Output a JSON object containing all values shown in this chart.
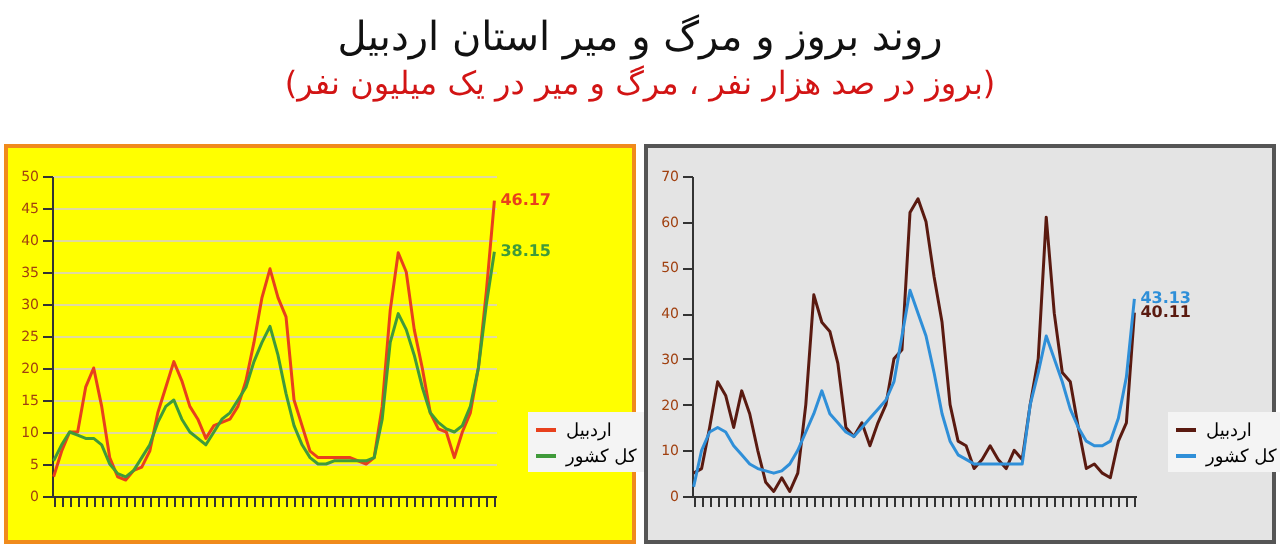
{
  "chart_data": [
    {
      "type": "line",
      "title": "روند بروز و مرگ و میر استان اردبیل",
      "subtitle": "(بروز در صد هزار نفر ، مرگ و میر در یک میلیون نفر)",
      "categories": [
        null,
        null,
        null,
        null,
        null,
        null,
        null,
        null,
        null,
        null,
        null,
        null,
        null,
        null,
        null,
        null,
        null,
        null,
        null,
        null,
        null,
        null,
        null,
        null,
        null,
        null,
        null,
        null,
        null,
        null,
        null,
        null,
        null,
        null,
        null,
        null,
        null,
        null,
        null,
        null,
        null,
        null,
        null,
        null,
        null,
        null,
        null,
        null,
        null,
        null,
        null,
        null,
        null,
        null,
        null,
        null
      ],
      "series": [
        {
          "name": "اردبیل",
          "color": "#e8401c",
          "values": [
            3,
            7,
            10,
            10,
            17,
            20,
            14,
            6,
            3,
            2.5,
            4,
            4.5,
            7,
            13,
            17,
            21,
            18,
            14,
            12,
            9,
            11,
            11.5,
            12,
            14,
            18,
            24,
            31,
            35.5,
            31,
            28,
            15,
            11,
            7,
            6,
            6,
            6,
            6,
            6,
            5.5,
            5,
            6,
            14,
            29,
            38,
            35,
            26,
            20,
            13,
            10.5,
            10,
            6,
            10,
            13,
            20,
            32,
            46.17
          ],
          "value_labels": [
            null,
            null,
            null,
            null,
            null,
            null,
            null,
            null,
            null,
            null,
            null,
            null,
            null,
            null,
            null,
            null,
            null,
            null,
            null,
            null,
            null,
            null,
            null,
            null,
            null,
            null,
            null,
            null,
            null,
            null,
            null,
            null,
            null,
            null,
            null,
            null,
            null,
            null,
            null,
            null,
            null,
            null,
            null,
            null,
            null,
            null,
            null,
            null,
            null,
            null,
            null,
            null,
            null,
            null,
            null,
            "46.17"
          ]
        },
        {
          "name": "کل کشور",
          "color": "#3f9a3a",
          "values": [
            5.5,
            8,
            10,
            9.5,
            9,
            9,
            8,
            5,
            3.5,
            3,
            4,
            6,
            8,
            11.5,
            14,
            15,
            12,
            10,
            9,
            8,
            10,
            12,
            13,
            15,
            17,
            21,
            24,
            26.5,
            22,
            16,
            11,
            8,
            6,
            5,
            5,
            5.5,
            5.5,
            5.5,
            5.5,
            5.5,
            6,
            12,
            24,
            28.5,
            26,
            22,
            17,
            13,
            11.5,
            10.5,
            10,
            11,
            14,
            20,
            30,
            38.15
          ],
          "value_labels": [
            null,
            null,
            null,
            null,
            null,
            null,
            null,
            null,
            null,
            null,
            null,
            null,
            null,
            null,
            null,
            null,
            null,
            null,
            null,
            null,
            null,
            null,
            null,
            null,
            null,
            null,
            null,
            null,
            null,
            null,
            null,
            null,
            null,
            null,
            null,
            null,
            null,
            null,
            null,
            null,
            null,
            null,
            null,
            null,
            null,
            null,
            null,
            null,
            null,
            null,
            null,
            null,
            null,
            null,
            null,
            "38.15"
          ]
        }
      ],
      "ylim": [
        0,
        50
      ],
      "yticks": [
        0,
        5,
        10,
        15,
        20,
        25,
        30,
        35,
        40,
        45,
        50
      ],
      "grid": "y",
      "legend": "right"
    },
    {
      "type": "line",
      "categories": [
        null,
        null,
        null,
        null,
        null,
        null,
        null,
        null,
        null,
        null,
        null,
        null,
        null,
        null,
        null,
        null,
        null,
        null,
        null,
        null,
        null,
        null,
        null,
        null,
        null,
        null,
        null,
        null,
        null,
        null,
        null,
        null,
        null,
        null,
        null,
        null,
        null,
        null,
        null,
        null,
        null,
        null,
        null,
        null,
        null,
        null,
        null,
        null,
        null,
        null,
        null,
        null,
        null,
        null,
        null,
        null
      ],
      "series": [
        {
          "name": "اردبیل",
          "color": "#5a1a10",
          "values": [
            5,
            6,
            15,
            25,
            22,
            15,
            23,
            18,
            10,
            3,
            1,
            4,
            1,
            5,
            20,
            44,
            38,
            36,
            29,
            15,
            13,
            16,
            11,
            16,
            20,
            30,
            32,
            62,
            65,
            60,
            48,
            38,
            20,
            12,
            11,
            6,
            8,
            11,
            8,
            6,
            10,
            8,
            20,
            30,
            61,
            40,
            27,
            25,
            15,
            6,
            7,
            5,
            4,
            12,
            16,
            40.11
          ],
          "value_labels": [
            null,
            null,
            null,
            null,
            null,
            null,
            null,
            null,
            null,
            null,
            null,
            null,
            null,
            null,
            null,
            null,
            null,
            null,
            null,
            null,
            null,
            null,
            null,
            null,
            null,
            null,
            null,
            null,
            null,
            null,
            null,
            null,
            null,
            null,
            null,
            null,
            null,
            null,
            null,
            null,
            null,
            null,
            null,
            null,
            null,
            null,
            null,
            null,
            null,
            null,
            null,
            null,
            null,
            null,
            null,
            "40.11"
          ]
        },
        {
          "name": "کل کشور",
          "color": "#2f8fd8",
          "values": [
            2,
            10,
            14,
            15,
            14,
            11,
            9,
            7,
            6,
            5.5,
            5,
            5.5,
            7,
            10,
            14,
            18,
            23,
            18,
            16,
            14,
            13,
            15,
            17,
            19,
            21,
            25,
            35,
            45,
            40,
            35,
            27,
            18,
            12,
            9,
            8,
            7,
            7,
            7,
            7,
            7,
            7,
            7,
            20,
            27,
            35,
            30,
            25,
            19,
            15,
            12,
            11,
            11,
            12,
            17,
            26,
            43.13
          ],
          "value_labels": [
            null,
            null,
            null,
            null,
            null,
            null,
            null,
            null,
            null,
            null,
            null,
            null,
            null,
            null,
            null,
            null,
            null,
            null,
            null,
            null,
            null,
            null,
            null,
            null,
            null,
            null,
            null,
            null,
            null,
            null,
            null,
            null,
            null,
            null,
            null,
            null,
            null,
            null,
            null,
            null,
            null,
            null,
            null,
            null,
            null,
            null,
            null,
            null,
            null,
            null,
            null,
            null,
            null,
            null,
            null,
            "43.13"
          ]
        }
      ],
      "ylim": [
        0,
        70
      ],
      "yticks": [
        0,
        10,
        20,
        30,
        40,
        50,
        60,
        70
      ],
      "legend": "right"
    }
  ]
}
